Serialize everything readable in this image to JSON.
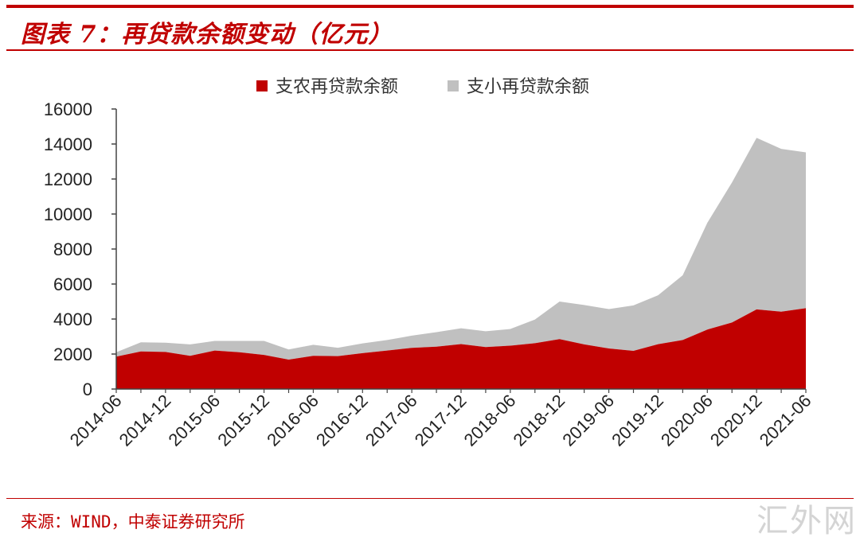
{
  "header": {
    "title": "图表 7：再贷款余额变动（亿元）"
  },
  "footer": {
    "source": "来源：WIND，中泰证券研究所",
    "watermark": "汇外网"
  },
  "chart_data": {
    "type": "area",
    "stacked": true,
    "x": [
      "2014-06",
      "2014-09",
      "2014-12",
      "2015-03",
      "2015-06",
      "2015-09",
      "2015-12",
      "2016-03",
      "2016-06",
      "2016-09",
      "2016-12",
      "2017-03",
      "2017-06",
      "2017-09",
      "2017-12",
      "2018-03",
      "2018-06",
      "2018-09",
      "2018-12",
      "2019-03",
      "2019-06",
      "2019-09",
      "2019-12",
      "2020-03",
      "2020-06",
      "2020-09",
      "2020-12",
      "2021-03",
      "2021-06"
    ],
    "tick_labels": [
      "2014-06",
      "2014-12",
      "2015-06",
      "2015-12",
      "2016-06",
      "2016-12",
      "2017-06",
      "2017-12",
      "2018-06",
      "2018-12",
      "2019-06",
      "2019-12",
      "2020-06",
      "2020-12",
      "2021-06"
    ],
    "series": [
      {
        "name": "支农再贷款余额",
        "color": "#c00000",
        "values": [
          1850,
          2150,
          2120,
          1900,
          2200,
          2100,
          1950,
          1680,
          1900,
          1880,
          2050,
          2200,
          2350,
          2420,
          2570,
          2400,
          2480,
          2620,
          2850,
          2550,
          2320,
          2180,
          2560,
          2800,
          3400,
          3800,
          4550,
          4420,
          4620
        ]
      },
      {
        "name": "支小再贷款余额",
        "color": "#c0c0c0",
        "values": [
          250,
          520,
          530,
          650,
          550,
          650,
          800,
          580,
          630,
          480,
          560,
          600,
          700,
          830,
          900,
          900,
          950,
          1350,
          2150,
          2250,
          2250,
          2600,
          2800,
          3700,
          6100,
          8000,
          9800,
          9300,
          8900
        ]
      }
    ],
    "ylim": [
      0,
      16000
    ],
    "yticks": [
      0,
      2000,
      4000,
      6000,
      8000,
      10000,
      12000,
      14000,
      16000
    ],
    "legend_position": "top-center"
  }
}
